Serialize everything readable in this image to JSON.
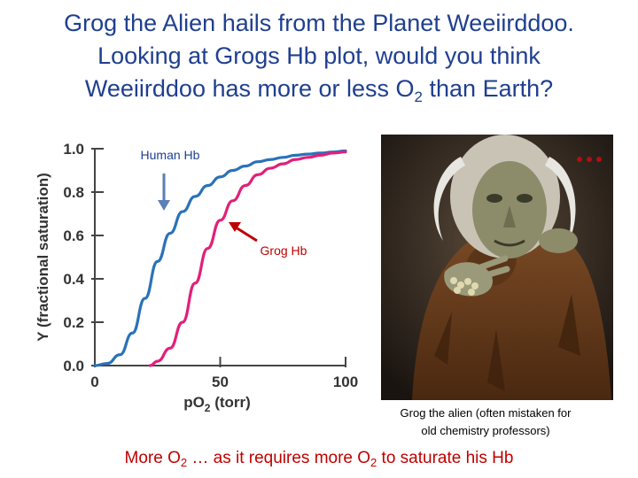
{
  "slide": {
    "title_line1": "Grog the Alien hails from the Planet Weeiirddoo.",
    "title_line2": "Looking at Grogs Hb plot, would you think",
    "title_line3_pre": "Weeiirddoo has more or less O",
    "title_line3_sub": "2",
    "title_line3_post": " than Earth?",
    "photo_caption_line1": "Grog the alien (often mistaken for",
    "photo_caption_line2": "old chemistry professors)",
    "answer_p1": "More O",
    "answer_sub1": "2",
    "answer_p2": " … as it requires more O",
    "answer_sub2": "2",
    "answer_p3": " to saturate his Hb"
  },
  "photo": {
    "icon": "alien-figure-photo"
  },
  "chart_data": {
    "type": "line",
    "xlabel_main": "pO",
    "xlabel_sub": "2",
    "xlabel_unit": " (torr)",
    "ylabel": "Y (fractional saturation)",
    "xlim": [
      0,
      100
    ],
    "ylim": [
      0,
      1.0
    ],
    "x_ticks": [
      "0",
      "50",
      "100"
    ],
    "y_ticks": [
      "0.0",
      "0.2",
      "0.4",
      "0.6",
      "0.8",
      "1.0"
    ],
    "grid": false,
    "series": [
      {
        "name": "Human Hb",
        "color": "#2a72b8",
        "x": [
          0,
          5,
          10,
          15,
          20,
          25,
          30,
          35,
          40,
          45,
          50,
          55,
          60,
          65,
          70,
          75,
          80,
          85,
          90,
          95,
          100
        ],
        "y": [
          0,
          0.01,
          0.05,
          0.15,
          0.31,
          0.48,
          0.61,
          0.71,
          0.78,
          0.83,
          0.87,
          0.9,
          0.92,
          0.94,
          0.95,
          0.96,
          0.97,
          0.975,
          0.98,
          0.985,
          0.99
        ]
      },
      {
        "name": "Grog Hb",
        "color": "#e0207a",
        "x": [
          22,
          25,
          30,
          35,
          40,
          45,
          50,
          55,
          60,
          65,
          70,
          75,
          80,
          85,
          90,
          95,
          100
        ],
        "y": [
          0,
          0.02,
          0.08,
          0.2,
          0.38,
          0.54,
          0.67,
          0.76,
          0.83,
          0.88,
          0.91,
          0.93,
          0.95,
          0.96,
          0.97,
          0.98,
          0.985
        ]
      }
    ],
    "annotations": [
      {
        "text": "Human Hb",
        "color": "#1f3f8f"
      },
      {
        "text": "Grog Hb",
        "color": "#c00000"
      }
    ]
  }
}
